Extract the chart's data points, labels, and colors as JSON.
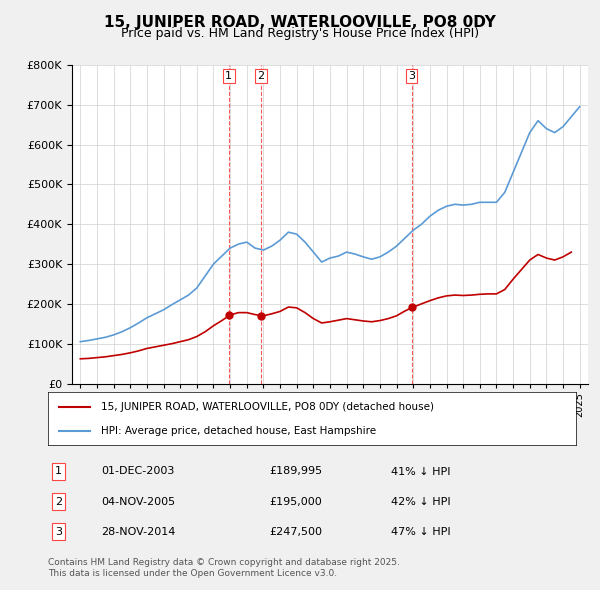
{
  "title": "15, JUNIPER ROAD, WATERLOOVILLE, PO8 0DY",
  "subtitle": "Price paid vs. HM Land Registry's House Price Index (HPI)",
  "background_color": "#f0f0f0",
  "plot_bg_color": "#ffffff",
  "legend_line1": "15, JUNIPER ROAD, WATERLOOVILLE, PO8 0DY (detached house)",
  "legend_line2": "HPI: Average price, detached house, East Hampshire",
  "footer_line1": "Contains HM Land Registry data © Crown copyright and database right 2025.",
  "footer_line2": "This data is licensed under the Open Government Licence v3.0.",
  "sales": [
    {
      "num": 1,
      "date": "01-DEC-2003",
      "price": "£189,995",
      "pct": "41% ↓ HPI",
      "x": 2003.92
    },
    {
      "num": 2,
      "date": "04-NOV-2005",
      "price": "£195,000",
      "pct": "42% ↓ HPI",
      "x": 2005.84
    },
    {
      "num": 3,
      "date": "28-NOV-2014",
      "price": "£247,500",
      "pct": "47% ↓ HPI",
      "x": 2014.91
    }
  ],
  "sale_prices": [
    189995,
    195000,
    247500
  ],
  "ylim": [
    0,
    800000
  ],
  "xlim": [
    1994.5,
    2025.5
  ],
  "hpi_color": "#5b9bd5",
  "price_color": "#c00000",
  "vline_color": "#ff4444",
  "grid_color": "#d0d0d0",
  "hpi_data_x": [
    1995.0,
    1995.5,
    1996.0,
    1996.5,
    1997.0,
    1997.5,
    1998.0,
    1998.5,
    1999.0,
    1999.5,
    2000.0,
    2000.5,
    2001.0,
    2001.5,
    2002.0,
    2002.5,
    2003.0,
    2003.5,
    2004.0,
    2004.5,
    2005.0,
    2005.5,
    2006.0,
    2006.5,
    2007.0,
    2007.5,
    2008.0,
    2008.5,
    2009.0,
    2009.5,
    2010.0,
    2010.5,
    2011.0,
    2011.5,
    2012.0,
    2012.5,
    2013.0,
    2013.5,
    2014.0,
    2014.5,
    2015.0,
    2015.5,
    2016.0,
    2016.5,
    2017.0,
    2017.5,
    2018.0,
    2018.5,
    2019.0,
    2019.5,
    2020.0,
    2020.5,
    2021.0,
    2021.5,
    2022.0,
    2022.5,
    2023.0,
    2023.5,
    2024.0,
    2024.5,
    2025.0
  ],
  "hpi_data_y": [
    105000,
    108000,
    112000,
    116000,
    122000,
    130000,
    140000,
    152000,
    165000,
    175000,
    185000,
    198000,
    210000,
    222000,
    240000,
    270000,
    300000,
    320000,
    340000,
    350000,
    355000,
    340000,
    335000,
    345000,
    360000,
    380000,
    375000,
    355000,
    330000,
    305000,
    315000,
    320000,
    330000,
    325000,
    318000,
    312000,
    318000,
    330000,
    345000,
    365000,
    385000,
    400000,
    420000,
    435000,
    445000,
    450000,
    448000,
    450000,
    455000,
    455000,
    455000,
    480000,
    530000,
    580000,
    630000,
    660000,
    640000,
    630000,
    645000,
    670000,
    695000
  ],
  "price_data_x": [
    1995.0,
    1995.5,
    1996.0,
    1996.5,
    1997.0,
    1997.5,
    1998.0,
    1998.5,
    1999.0,
    1999.5,
    2000.0,
    2000.5,
    2001.0,
    2001.5,
    2002.0,
    2002.5,
    2003.0,
    2003.5,
    2004.0,
    2004.5,
    2005.0,
    2005.5,
    2006.0,
    2006.5,
    2007.0,
    2007.5,
    2008.0,
    2008.5,
    2009.0,
    2009.5,
    2010.0,
    2010.5,
    2011.0,
    2011.5,
    2012.0,
    2012.5,
    2013.0,
    2013.5,
    2014.0,
    2014.5,
    2015.0,
    2015.5,
    2016.0,
    2016.5,
    2017.0,
    2017.5,
    2018.0,
    2018.5,
    2019.0,
    2019.5,
    2020.0,
    2020.5,
    2021.0,
    2021.5,
    2022.0,
    2022.5,
    2023.0,
    2023.5,
    2024.0,
    2024.5
  ],
  "price_data_y": [
    62000,
    63000,
    65000,
    67000,
    70000,
    73000,
    77000,
    82000,
    88000,
    92000,
    96000,
    100000,
    105000,
    110000,
    118000,
    130000,
    145000,
    158000,
    172000,
    178000,
    178000,
    173000,
    170000,
    175000,
    181000,
    192000,
    190000,
    178000,
    163000,
    152000,
    155000,
    159000,
    163000,
    160000,
    157000,
    155000,
    158000,
    163000,
    170000,
    182000,
    192000,
    200000,
    208000,
    215000,
    220000,
    222000,
    221000,
    222000,
    224000,
    225000,
    225000,
    236000,
    262000,
    286000,
    310000,
    324000,
    315000,
    310000,
    318000,
    330000
  ]
}
